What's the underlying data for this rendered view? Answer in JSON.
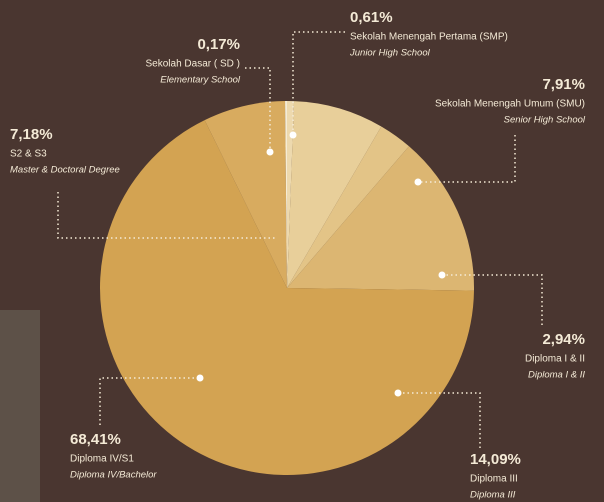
{
  "chart_data": {
    "type": "pie",
    "categories": [
      "Sekolah Menengah Pertama (SMP)",
      "Sekolah Menengah Umum (SMU)",
      "Diploma I & II",
      "Diploma III",
      "Diploma IV/S1",
      "S2 & S3",
      "Sekolah Dasar ( SD )"
    ],
    "labels_en": [
      "Junior High School",
      "Senior High School",
      "Diploma I & II",
      "Diploma III",
      "Diploma IV/Bachelor",
      "Master & Doctoral Degree",
      "Elementary School"
    ],
    "values": [
      0.61,
      7.91,
      2.94,
      14.09,
      68.41,
      7.18,
      0.17
    ],
    "value_labels": [
      "0,61%",
      "7,91%",
      "2,94%",
      "14,09%",
      "68,41%",
      "7,18%",
      "0,17%"
    ],
    "colors": [
      "#edd9ae",
      "#e8cf9a",
      "#e3c487",
      "#dcb672",
      "#d3a352",
      "#d8ab5f",
      "#f6ecd4"
    ]
  }
}
